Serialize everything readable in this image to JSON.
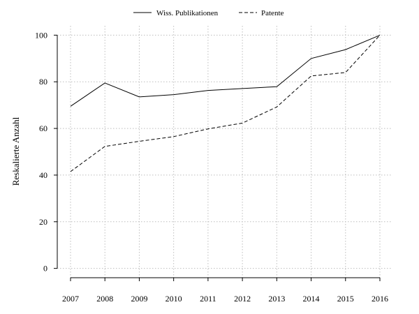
{
  "chart_data": {
    "type": "line",
    "title": "",
    "xlabel": "",
    "ylabel": "Reskalierte Anzahl",
    "x": [
      2007,
      2008,
      2009,
      2010,
      2011,
      2012,
      2013,
      2014,
      2015,
      2016
    ],
    "x_tick_labels": [
      "2007",
      "2008",
      "2009",
      "2010",
      "2011",
      "2012",
      "2013",
      "2014",
      "2015",
      "2016"
    ],
    "y_tick_labels": [
      "0",
      "20",
      "40",
      "60",
      "80",
      "100"
    ],
    "yticks": [
      0,
      20,
      40,
      60,
      80,
      100
    ],
    "ylim": [
      -4,
      104
    ],
    "grid": true,
    "legend_position": "top-center",
    "series": [
      {
        "name": "Wiss. Publikationen",
        "line_style": "solid",
        "color": "#000000",
        "values": [
          69.5,
          79.5,
          73.5,
          74.5,
          76.3,
          77.1,
          77.9,
          90.0,
          93.8,
          100
        ]
      },
      {
        "name": "Patente",
        "line_style": "dashed",
        "color": "#000000",
        "values": [
          41.5,
          52.3,
          54.5,
          56.5,
          59.8,
          62.3,
          69.2,
          82.5,
          84.0,
          100
        ]
      }
    ]
  }
}
